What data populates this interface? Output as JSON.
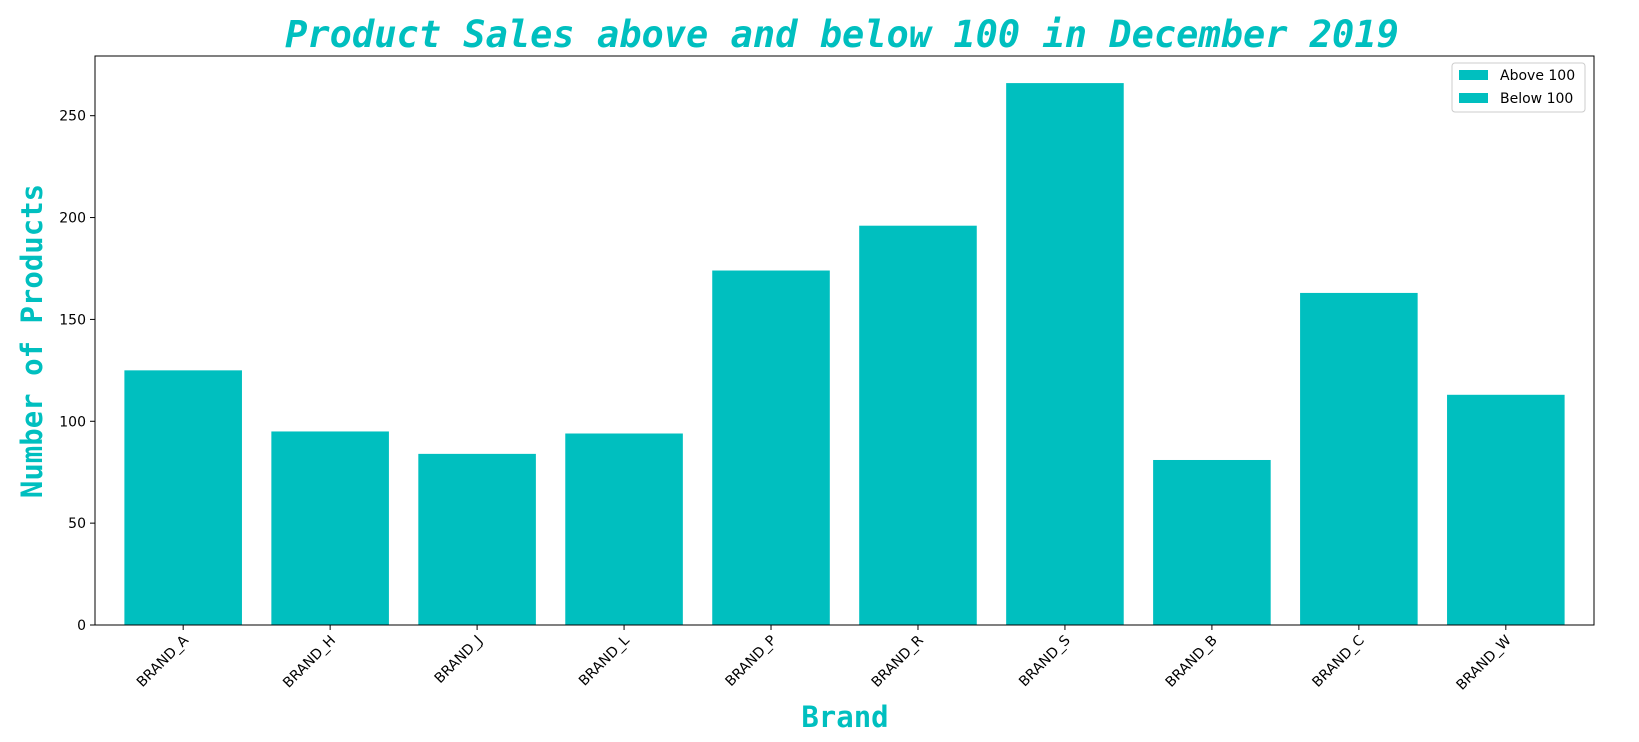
{
  "chart_data": {
    "type": "bar",
    "title": "Product Sales above and below 100 in December 2019",
    "xlabel": "Brand",
    "ylabel": "Number of Products",
    "categories": [
      "BRAND_A",
      "BRAND_H",
      "BRAND_J",
      "BRAND_L",
      "BRAND_P",
      "BRAND_R",
      "BRAND_S",
      "BRAND_B",
      "BRAND_C",
      "BRAND_W"
    ],
    "series": [
      {
        "name": "Above 100",
        "values": [
          125,
          null,
          null,
          null,
          174,
          196,
          266,
          null,
          163,
          113
        ]
      },
      {
        "name": "Below 100",
        "values": [
          null,
          95,
          84,
          94,
          null,
          null,
          null,
          81,
          null,
          null
        ]
      }
    ],
    "yticks": [
      0,
      50,
      100,
      150,
      200,
      250
    ],
    "ylim": [
      0,
      279.3
    ],
    "grid": false,
    "legend_position": "top-right",
    "bar_color": "#00BFBF",
    "title_color": "#00BFBF"
  }
}
